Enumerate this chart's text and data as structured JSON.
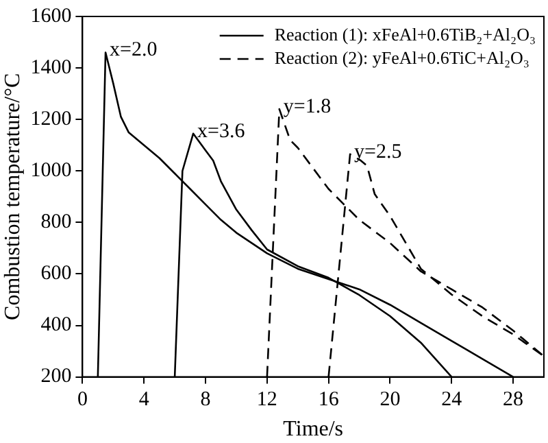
{
  "chart_data": {
    "type": "line",
    "xlabel": "Time/s",
    "ylabel": "Combustion temperature/°C",
    "xlim": [
      0,
      30
    ],
    "xticks": [
      0,
      4,
      8,
      12,
      16,
      20,
      24,
      28
    ],
    "ylim": [
      200,
      1600
    ],
    "yticks": [
      200,
      400,
      600,
      800,
      1000,
      1200,
      1400,
      1600
    ],
    "grid": false,
    "legend": "top right",
    "marker": "none",
    "series": [
      {
        "name": "Reaction (1): xFeAl+0.6TiB₂+Al₂O₃",
        "color": "#000000",
        "line_style": "solid",
        "x": [
          1.0,
          1.5,
          2,
          2.5,
          3,
          4,
          5,
          6,
          7,
          8,
          9,
          10,
          11,
          12,
          14,
          16,
          18,
          20,
          22,
          24,
          26,
          28
        ],
        "values": [
          200,
          1460,
          1340,
          1210,
          1150,
          1100,
          1050,
          990,
          930,
          870,
          810,
          760,
          720,
          680,
          620,
          580,
          540,
          480,
          410,
          340,
          270,
          200
        ]
      },
      {
        "color": "#000000",
        "line_style": "solid",
        "x": [
          6.0,
          6.5,
          7.2,
          8,
          8.5,
          9,
          10,
          11,
          12,
          14,
          16,
          18,
          20,
          22,
          24
        ],
        "values": [
          200,
          1000,
          1145,
          1080,
          1040,
          960,
          850,
          770,
          695,
          630,
          585,
          518,
          436,
          333,
          200
        ]
      },
      {
        "name": "Reaction (2): yFeAl+0.6TiC+Al₂O₃",
        "color": "#000000",
        "line_style": "dashed",
        "x": [
          12,
          12.8,
          13.5,
          14,
          16,
          18,
          20,
          22,
          24,
          26,
          28,
          30
        ],
        "values": [
          200,
          1240,
          1120,
          1090,
          930,
          810,
          720,
          610,
          540,
          470,
          380,
          280
        ]
      },
      {
        "color": "#000000",
        "line_style": "dashed",
        "x": [
          16,
          17.4,
          18.1,
          18.5,
          19,
          20,
          22,
          24,
          26,
          28,
          30
        ],
        "values": [
          200,
          1065,
          1040,
          1020,
          910,
          825,
          620,
          520,
          436,
          365,
          280
        ]
      }
    ],
    "annotations": [
      {
        "text": "x=2.0",
        "x": 1.5,
        "y": 1460
      },
      {
        "text": "x=3.6",
        "x": 7.2,
        "y": 1145
      },
      {
        "text": "y=1.8",
        "x": 12.8,
        "y": 1240
      },
      {
        "text": "y=2.5",
        "x": 17.4,
        "y": 1065
      }
    ]
  }
}
